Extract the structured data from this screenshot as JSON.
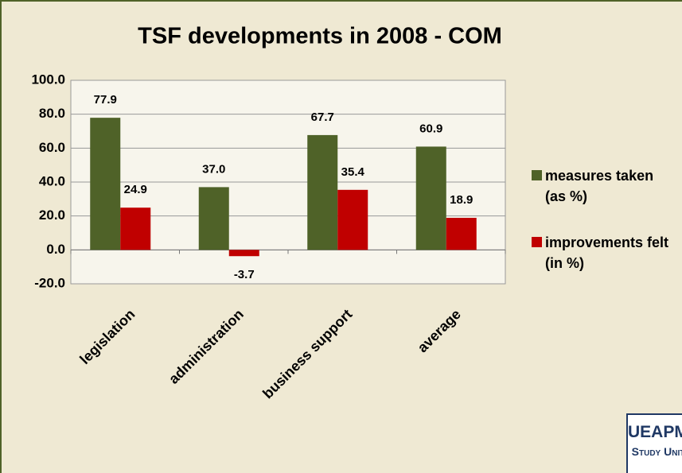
{
  "chart_data": {
    "type": "bar",
    "title": "TSF developments in 2008 - COM",
    "categories": [
      "legislation",
      "administration",
      "business support",
      "average"
    ],
    "series": [
      {
        "name": "measures taken (as %)",
        "color": "#4f6228",
        "values": [
          77.9,
          37.0,
          67.7,
          60.9
        ],
        "value_labels": [
          "77.9",
          "37.0",
          "67.7",
          "60.9"
        ]
      },
      {
        "name": "improvements felt (in %)",
        "color": "#c00000",
        "values": [
          24.9,
          -3.7,
          35.4,
          18.9
        ],
        "value_labels": [
          "24.9",
          "-3.7",
          "35.4",
          "18.9"
        ]
      }
    ],
    "ylim": [
      -20,
      100
    ],
    "yticks": [
      {
        "value": -20,
        "label": "-20.0"
      },
      {
        "value": 0,
        "label": "0.0"
      },
      {
        "value": 20,
        "label": "20.0"
      },
      {
        "value": 40,
        "label": "40.0"
      },
      {
        "value": 60,
        "label": "60.0"
      },
      {
        "value": 80,
        "label": "80.0"
      },
      {
        "value": 100,
        "label": "100.0"
      }
    ],
    "grid": true,
    "legend": "right"
  },
  "logo": {
    "line1": "UEAPME",
    "line2": "Study Unit"
  }
}
